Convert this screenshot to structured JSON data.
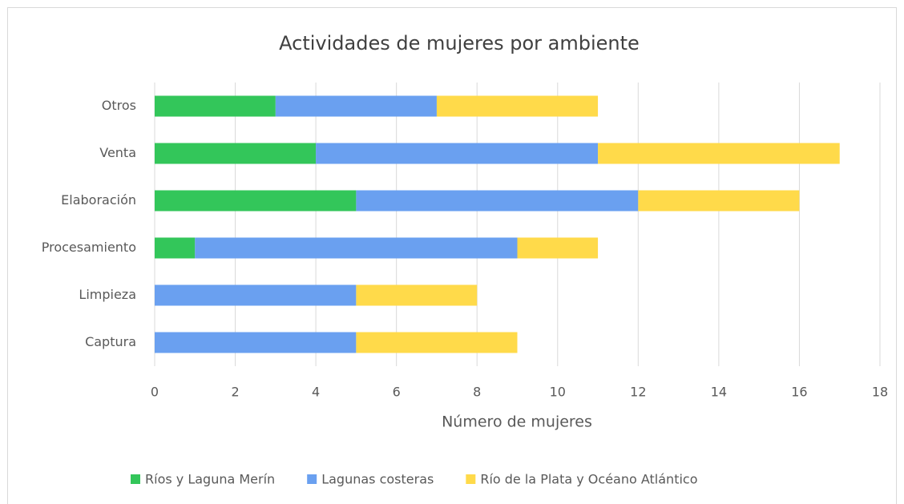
{
  "chart_data": {
    "type": "stacked_bar_horizontal",
    "title": "Actividades de mujeres por ambiente",
    "x_axis_label": "Número de mujeres",
    "categories": [
      "Captura",
      "Limpieza",
      "Procesamiento",
      "Elaboración",
      "Venta",
      "Otros"
    ],
    "series": [
      {
        "name": "Ríos y Laguna Merín",
        "color": "#33c65a",
        "values": [
          0,
          0,
          1,
          5,
          4,
          3
        ]
      },
      {
        "name": "Lagunas costeras",
        "color": "#6aa0f0",
        "values": [
          5,
          5,
          8,
          7,
          7,
          4
        ]
      },
      {
        "name": "Río de la Plata y Océano Atlántico",
        "color": "#ffda4a",
        "values": [
          4,
          3,
          2,
          4,
          6,
          4
        ]
      }
    ],
    "xlim": [
      0,
      18
    ],
    "xticks": [
      0,
      2,
      4,
      6,
      8,
      10,
      12,
      14,
      16,
      18
    ],
    "grid": true,
    "legend": "bottom"
  }
}
